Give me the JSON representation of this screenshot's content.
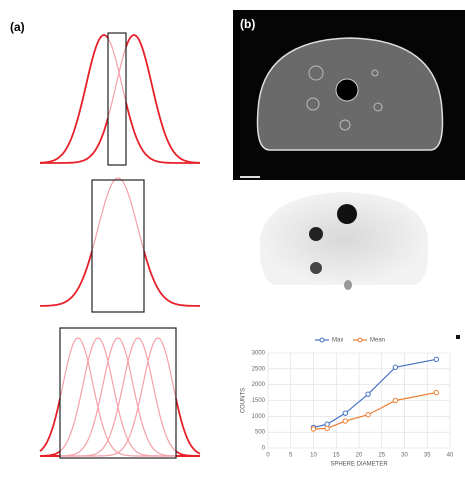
{
  "panels": {
    "a": "(a)",
    "b": "(b)"
  },
  "chart_data": {
    "type": "line",
    "x_label": "SPHERE DIAMETER",
    "y_label": "COUNTS",
    "x": [
      10,
      13,
      17,
      22,
      28,
      37
    ],
    "series": [
      {
        "name": "Max",
        "color": "#4472c4",
        "values": [
          650,
          750,
          1100,
          1700,
          2550,
          2800
        ]
      },
      {
        "name": "Mean",
        "color": "#ed7d31",
        "values": [
          600,
          620,
          850,
          1050,
          1500,
          1750
        ]
      }
    ],
    "xlim": [
      0,
      40
    ],
    "xticks": [
      0,
      5,
      10,
      15,
      20,
      25,
      30,
      35,
      40
    ],
    "ylim": [
      0,
      3000
    ],
    "yticks": [
      0,
      500,
      1000,
      1500,
      2000,
      2500,
      3000
    ],
    "grid": true,
    "legend": "top"
  }
}
